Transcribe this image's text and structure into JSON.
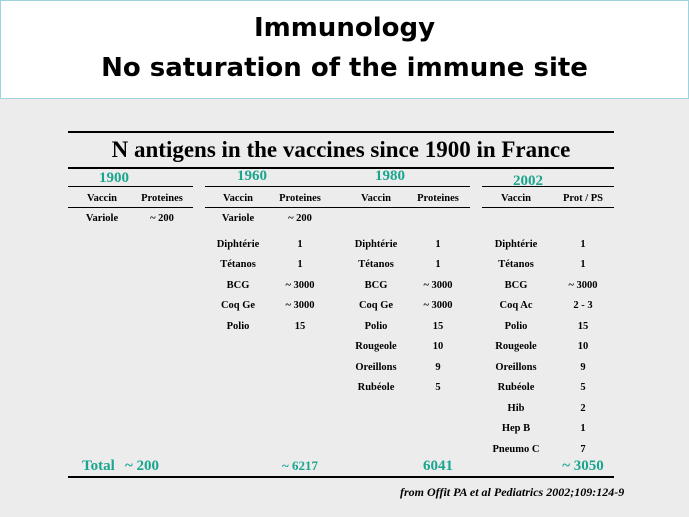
{
  "title": {
    "line1": "Immunology",
    "line2": "No saturation of the immune site"
  },
  "table": {
    "caption": "N antigens in the vaccines since 1900 in France",
    "eras": [
      {
        "year": "1900",
        "vaccine_header": "Vaccin",
        "value_header": "Proteines",
        "rows": [
          {
            "vaccine": "Variole",
            "value": "~ 200"
          }
        ],
        "total": "~ 200"
      },
      {
        "year": "1960",
        "vaccine_header": "Vaccin",
        "value_header": "Proteines",
        "rows": [
          {
            "vaccine": "Variole",
            "value": "~ 200"
          },
          {
            "vaccine": "Diphtérie",
            "value": "1"
          },
          {
            "vaccine": "Tétanos",
            "value": "1"
          },
          {
            "vaccine": "BCG",
            "value": "~ 3000"
          },
          {
            "vaccine": "Coq Ge",
            "value": "~ 3000"
          },
          {
            "vaccine": "Polio",
            "value": "15"
          }
        ],
        "total": "~ 6217"
      },
      {
        "year": "1980",
        "vaccine_header": "Vaccin",
        "value_header": "Proteines",
        "rows": [
          {
            "vaccine": "Diphtérie",
            "value": "1"
          },
          {
            "vaccine": "Tétanos",
            "value": "1"
          },
          {
            "vaccine": "BCG",
            "value": "~ 3000"
          },
          {
            "vaccine": "Coq Ge",
            "value": "~ 3000"
          },
          {
            "vaccine": "Polio",
            "value": "15"
          },
          {
            "vaccine": "Rougeole",
            "value": "10"
          },
          {
            "vaccine": "Oreillons",
            "value": "9"
          },
          {
            "vaccine": "Rubéole",
            "value": "5"
          }
        ],
        "total": "6041"
      },
      {
        "year": "2002",
        "vaccine_header": "Vaccin",
        "value_header": "Prot / PS",
        "rows": [
          {
            "vaccine": "Diphtérie",
            "value": "1"
          },
          {
            "vaccine": "Tétanos",
            "value": "1"
          },
          {
            "vaccine": "BCG",
            "value": "~ 3000"
          },
          {
            "vaccine": "Coq Ac",
            "value": "2 - 3"
          },
          {
            "vaccine": "Polio",
            "value": "15"
          },
          {
            "vaccine": "Rougeole",
            "value": "10"
          },
          {
            "vaccine": "Oreillons",
            "value": "9"
          },
          {
            "vaccine": "Rubéole",
            "value": "5"
          },
          {
            "vaccine": "Hib",
            "value": "2"
          },
          {
            "vaccine": "Hep B",
            "value": "1"
          },
          {
            "vaccine": "Pneumo  C",
            "value": "7"
          }
        ],
        "total": "~ 3050"
      }
    ],
    "total_label": "Total"
  },
  "source": "from Offit PA et al Pediatrics 2002;109:124-9",
  "colors": {
    "accent": "#1aa58e",
    "title_border": "#9fd3dc",
    "background": "#ececec"
  }
}
